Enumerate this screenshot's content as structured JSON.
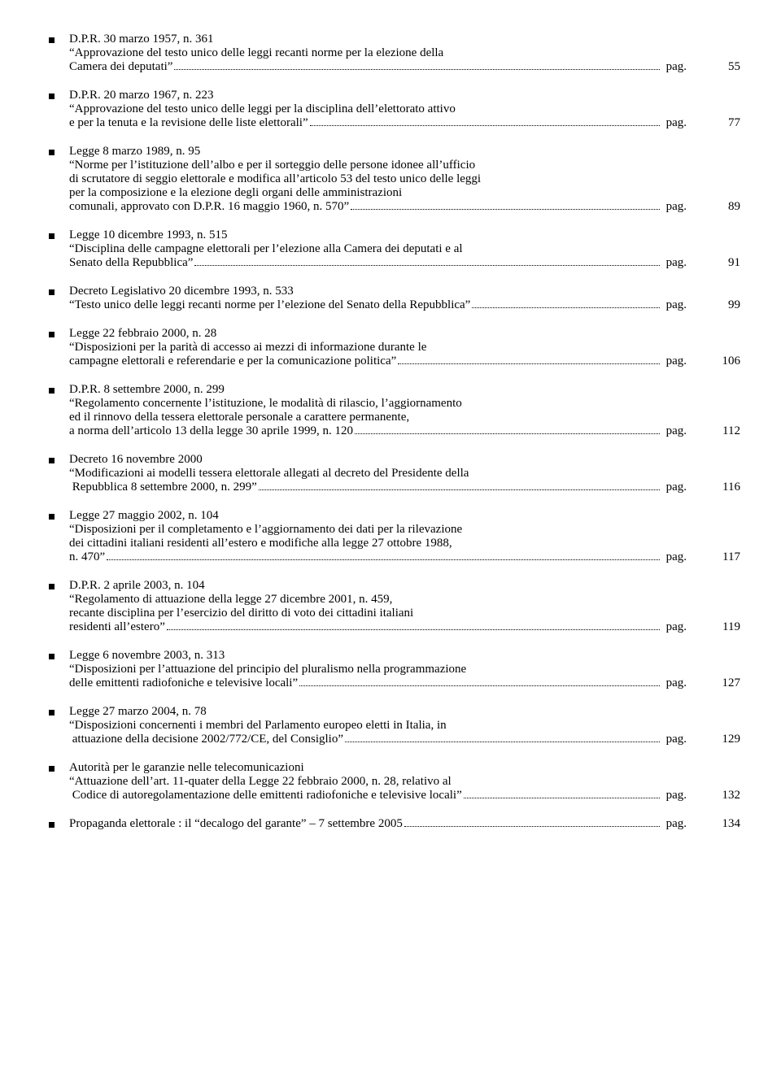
{
  "entries": [
    {
      "title": "D.P.R. 30 marzo 1957, n. 361",
      "lines": [
        "“Approvazione del testo unico delle leggi recanti norme per la elezione della"
      ],
      "last": "Camera dei deputati”",
      "pag": "pag.",
      "num": "55"
    },
    {
      "title": "D.P.R. 20 marzo 1967, n. 223",
      "lines": [
        "“Approvazione del testo unico delle leggi per la disciplina dell’elettorato attivo"
      ],
      "last": "e per la tenuta e la revisione delle liste elettorali”",
      "pag": "pag.",
      "num": "77"
    },
    {
      "title": "Legge 8 marzo 1989, n. 95",
      "lines": [
        "“Norme per l’istituzione dell’albo e per il sorteggio delle persone idonee all’ufficio",
        "di scrutatore di seggio elettorale e modifica all’articolo 53 del testo unico delle leggi",
        "per la composizione e la elezione degli organi delle amministrazioni"
      ],
      "last": "comunali, approvato con D.P.R. 16 maggio 1960, n. 570”",
      "pag": "pag.",
      "num": "89"
    },
    {
      "title": "Legge 10 dicembre 1993, n. 515",
      "lines": [
        "“Disciplina delle campagne elettorali per l’elezione alla Camera dei deputati e al"
      ],
      "last": "Senato della Repubblica”",
      "pag": "pag.",
      "num": "91"
    },
    {
      "title": "Decreto Legislativo 20 dicembre 1993, n. 533",
      "lines": [],
      "last": "“Testo unico delle leggi recanti norme per l’elezione del Senato della Repubblica”",
      "pag": "pag.",
      "num": "99"
    },
    {
      "title": "Legge 22 febbraio 2000, n. 28",
      "lines": [
        "“Disposizioni per la parità di accesso ai mezzi di informazione durante le"
      ],
      "last": "campagne elettorali e referendarie e per la comunicazione politica”",
      "pag": "pag.",
      "num": "106"
    },
    {
      "title": "D.P.R. 8 settembre 2000, n. 299",
      "lines": [
        "“Regolamento concernente l’istituzione, le modalità di rilascio, l’aggiornamento",
        "ed il rinnovo della tessera elettorale personale a carattere permanente,"
      ],
      "last": "a norma dell’articolo 13 della legge 30 aprile 1999, n. 120",
      "pag": "pag.",
      "num": "112"
    },
    {
      "title": "Decreto 16 novembre 2000",
      "lines": [
        "“Modificazioni ai modelli tessera elettorale allegati al decreto del Presidente della"
      ],
      "last": " Repubblica 8 settembre 2000, n. 299”",
      "pag": "pag.",
      "num": "116"
    },
    {
      "title": "Legge 27 maggio 2002, n. 104",
      "lines": [
        "“Disposizioni per il completamento e l’aggiornamento dei dati per la rilevazione",
        "dei cittadini italiani residenti all’estero e modifiche alla legge 27 ottobre 1988,"
      ],
      "last": "n. 470”",
      "pag": "pag.",
      "num": "117"
    },
    {
      "title": "D.P.R. 2 aprile 2003, n. 104",
      "lines": [
        "“Regolamento di attuazione della legge 27 dicembre 2001, n. 459,",
        "recante disciplina per l’esercizio del diritto di voto dei cittadini italiani"
      ],
      "last": "residenti all’estero”",
      "pag": "pag.",
      "num": "119"
    },
    {
      "title": "Legge 6 novembre 2003, n. 313",
      "lines": [
        "“Disposizioni per l’attuazione del principio del pluralismo nella programmazione"
      ],
      "last": "delle emittenti radiofoniche e televisive locali”",
      "pag": "pag.",
      "num": "127"
    },
    {
      "title": "Legge 27 marzo 2004, n. 78",
      "lines": [
        "“Disposizioni concernenti i membri del Parlamento europeo eletti in Italia, in"
      ],
      "last": " attuazione della decisione 2002/772/CE, del Consiglio”",
      "pag": "pag.",
      "num": "129"
    },
    {
      "title": "Autorità per le garanzie nelle telecomunicazioni",
      "lines": [
        "“Attuazione dell’art. 11-quater della Legge 22 febbraio 2000, n. 28, relativo al"
      ],
      "last": " Codice di autoregolamentazione delle emittenti radiofoniche e televisive locali”",
      "pag": "pag.",
      "num": "132"
    },
    {
      "title": "",
      "lines": [],
      "last": "Propaganda elettorale : il “decalogo del garante” – 7 settembre 2005",
      "pag": "pag.",
      "num": "134"
    }
  ]
}
